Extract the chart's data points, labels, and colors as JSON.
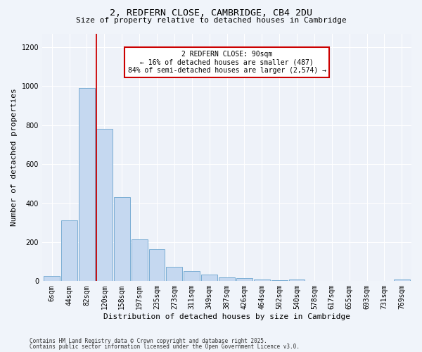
{
  "title_line1": "2, REDFERN CLOSE, CAMBRIDGE, CB4 2DU",
  "title_line2": "Size of property relative to detached houses in Cambridge",
  "xlabel": "Distribution of detached houses by size in Cambridge",
  "ylabel": "Number of detached properties",
  "categories": [
    "6sqm",
    "44sqm",
    "82sqm",
    "120sqm",
    "158sqm",
    "197sqm",
    "235sqm",
    "273sqm",
    "311sqm",
    "349sqm",
    "387sqm",
    "426sqm",
    "464sqm",
    "502sqm",
    "540sqm",
    "578sqm",
    "617sqm",
    "655sqm",
    "693sqm",
    "731sqm",
    "769sqm"
  ],
  "bar_heights": [
    25,
    310,
    990,
    780,
    430,
    215,
    165,
    75,
    50,
    35,
    20,
    15,
    10,
    5,
    10,
    2,
    2,
    2,
    2,
    2,
    8
  ],
  "bar_color": "#c5d8f0",
  "bar_edge_color": "#7aadd4",
  "vline_x": 2.55,
  "annotation_text": "2 REDFERN CLOSE: 90sqm\n← 16% of detached houses are smaller (487)\n84% of semi-detached houses are larger (2,574) →",
  "annotation_box_color": "#ffffff",
  "annotation_box_edge": "#cc0000",
  "vline_color": "#cc0000",
  "ylim": [
    0,
    1270
  ],
  "yticks": [
    0,
    200,
    400,
    600,
    800,
    1000,
    1200
  ],
  "footer_line1": "Contains HM Land Registry data © Crown copyright and database right 2025.",
  "footer_line2": "Contains public sector information licensed under the Open Government Licence v3.0.",
  "bg_color": "#f0f4fa",
  "plot_bg_color": "#eef2f9",
  "grid_color": "#ffffff",
  "title1_fontsize": 9.5,
  "title2_fontsize": 8.0,
  "tick_fontsize": 7.0,
  "ylabel_fontsize": 8.0,
  "xlabel_fontsize": 8.0,
  "annot_fontsize": 7.0,
  "footer_fontsize": 5.5
}
